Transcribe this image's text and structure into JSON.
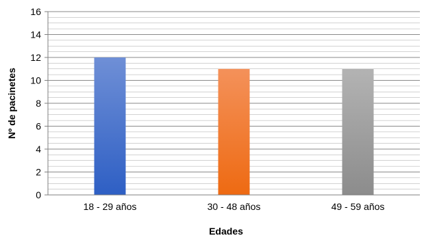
{
  "chart_data": {
    "type": "bar",
    "title": "",
    "xlabel": "Edades",
    "ylabel": "Nº de pacinetes",
    "categories": [
      "18 - 29 años",
      "30 - 48 años",
      "49 - 59 años"
    ],
    "values": [
      12,
      11,
      11
    ],
    "ylim": [
      0,
      16
    ],
    "yticks": [
      0,
      2,
      4,
      6,
      8,
      10,
      12,
      14,
      16
    ],
    "grid": true,
    "legend": "none",
    "colors": [
      {
        "top": "#6f8fd6",
        "bottom": "#2e5fc4"
      },
      {
        "top": "#f4915a",
        "bottom": "#ee6a12"
      },
      {
        "top": "#b3b3b3",
        "bottom": "#8c8c8c"
      }
    ]
  }
}
